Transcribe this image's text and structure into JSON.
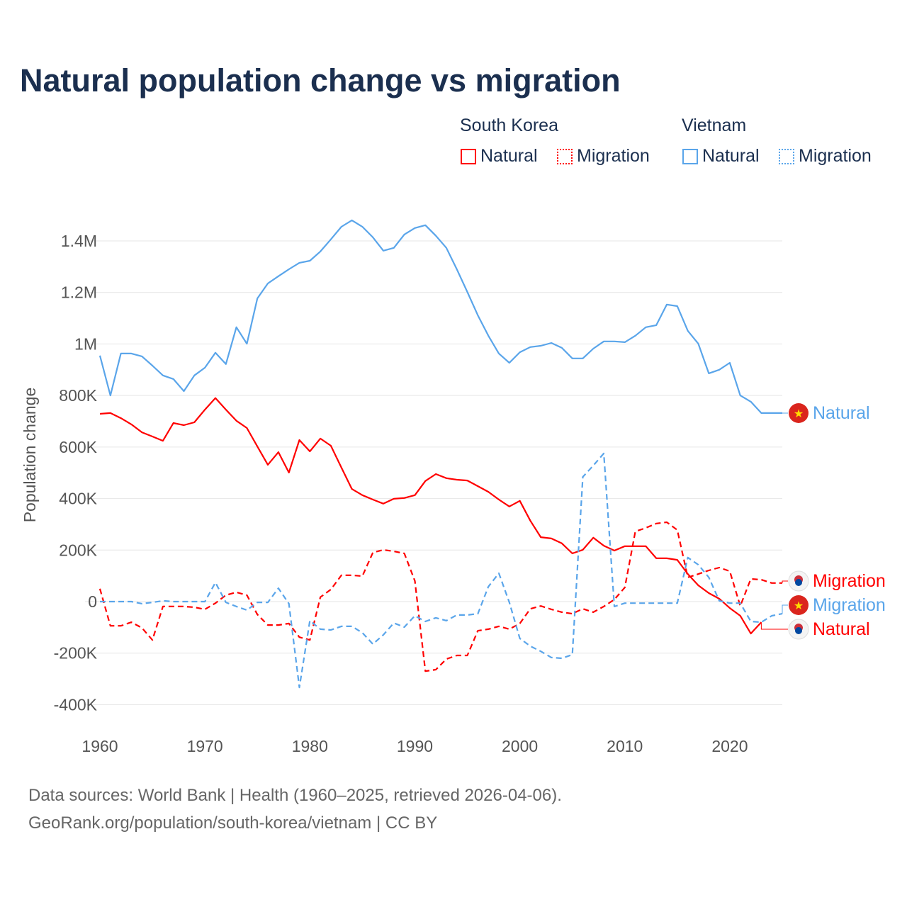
{
  "title": "Natural population change vs migration",
  "legend": {
    "groups": [
      {
        "name": "South Korea",
        "items": [
          "Natural",
          "Migration"
        ]
      },
      {
        "name": "Vietnam",
        "items": [
          "Natural",
          "Migration"
        ]
      }
    ]
  },
  "colors": {
    "south_korea": "#ff0000",
    "vietnam": "#5aa5ea",
    "title": "#1b2f4f"
  },
  "footer": {
    "line1": "Data sources: World Bank | Health (1960–2025, retrieved 2026-04-06).",
    "line2": "GeoRank.org/population/south-korea/vietnam | CC BY"
  },
  "chart_data": {
    "type": "line",
    "title": "Natural population change vs migration",
    "xlabel": "",
    "ylabel": "Population change",
    "xlim": [
      1960,
      2025
    ],
    "ylim": [
      -400000,
      1400000
    ],
    "x_ticks": [
      1960,
      1970,
      1980,
      1990,
      2000,
      2010,
      2020
    ],
    "y_ticks": [
      -400000,
      -200000,
      0,
      200000,
      400000,
      600000,
      800000,
      1000000,
      1200000,
      1400000
    ],
    "y_tick_labels": [
      "-400K",
      "-200K",
      "0",
      "200K",
      "400K",
      "600K",
      "800K",
      "1M",
      "1.2M",
      "1.4M"
    ],
    "grid": true,
    "legend_position": "top-right",
    "start_year": 1960,
    "series": [
      {
        "name": "Vietnam Natural",
        "label": "Natural",
        "country": "Vietnam",
        "color": "#5aa5ea",
        "dash": false,
        "values": [
          955000,
          800000,
          963000,
          963000,
          952000,
          916000,
          878000,
          864000,
          817000,
          878000,
          908000,
          966000,
          922000,
          1065000,
          1001000,
          1177000,
          1235000,
          1263000,
          1290000,
          1315000,
          1323000,
          1359000,
          1406000,
          1455000,
          1480000,
          1455000,
          1414000,
          1362000,
          1373000,
          1425000,
          1450000,
          1461000,
          1420000,
          1373000,
          1290000,
          1202000,
          1111000,
          1032000,
          963000,
          927000,
          968000,
          988000,
          993000,
          1004000,
          985000,
          944000,
          944000,
          982000,
          1010000,
          1010000,
          1007000,
          1032000,
          1065000,
          1073000,
          1153000,
          1147000,
          1051000,
          1001000,
          886000,
          900000,
          927000,
          800000,
          776000,
          732000,
          732000,
          732000
        ]
      },
      {
        "name": "South Korea Natural",
        "label": "Natural",
        "country": "South Korea",
        "color": "#ff0000",
        "dash": false,
        "values": [
          729000,
          732000,
          712000,
          688000,
          657000,
          641000,
          624000,
          693000,
          685000,
          696000,
          745000,
          790000,
          745000,
          702000,
          674000,
          602000,
          531000,
          580000,
          501000,
          627000,
          583000,
          633000,
          605000,
          520000,
          437000,
          413000,
          396000,
          380000,
          399000,
          402000,
          413000,
          468000,
          495000,
          479000,
          473000,
          470000,
          448000,
          426000,
          396000,
          369000,
          391000,
          314000,
          250000,
          245000,
          226000,
          187000,
          201000,
          248000,
          217000,
          198000,
          215000,
          215000,
          215000,
          168000,
          168000,
          162000,
          107000,
          63000,
          33000,
          11000,
          -25000,
          -55000,
          -124000,
          -80000,
          null,
          null
        ]
      },
      {
        "name": "South Korea Migration",
        "label": "Migration",
        "country": "South Korea",
        "color": "#ff0000",
        "dash": true,
        "values": [
          50000,
          -94000,
          -94000,
          -80000,
          -102000,
          -149000,
          -19000,
          -19000,
          -19000,
          -22000,
          -30000,
          -6000,
          25000,
          36000,
          25000,
          -50000,
          -91000,
          -91000,
          -85000,
          -138000,
          -149000,
          17000,
          47000,
          102000,
          102000,
          99000,
          190000,
          201000,
          195000,
          187000,
          80000,
          -270000,
          -264000,
          -223000,
          -209000,
          -209000,
          -113000,
          -107000,
          -96000,
          -107000,
          -85000,
          -28000,
          -17000,
          -30000,
          -41000,
          -47000,
          -28000,
          -41000,
          -19000,
          8000,
          55000,
          272000,
          286000,
          303000,
          308000,
          278000,
          94000,
          107000,
          121000,
          132000,
          118000,
          -17000,
          88000,
          85000,
          72000,
          72000
        ]
      },
      {
        "name": "Vietnam Migration",
        "label": "Migration",
        "country": "Vietnam",
        "color": "#5aa5ea",
        "dash": true,
        "values": [
          0,
          0,
          0,
          0,
          -8000,
          -3000,
          3000,
          0,
          0,
          0,
          0,
          74000,
          -3000,
          -19000,
          -33000,
          -3000,
          -3000,
          52000,
          -8000,
          -333000,
          -74000,
          -107000,
          -110000,
          -96000,
          -96000,
          -121000,
          -165000,
          -129000,
          -83000,
          -99000,
          -55000,
          -77000,
          -63000,
          -74000,
          -52000,
          -52000,
          -47000,
          58000,
          110000,
          -3000,
          -143000,
          -173000,
          -193000,
          -217000,
          -220000,
          -206000,
          484000,
          528000,
          575000,
          -19000,
          -6000,
          -6000,
          -6000,
          -6000,
          -6000,
          -6000,
          171000,
          143000,
          94000,
          3000,
          -6000,
          -6000,
          -77000,
          -80000,
          -55000,
          -47000
        ]
      }
    ],
    "end_labels": [
      {
        "series": "Vietnam Natural",
        "text": "Natural",
        "flag": "vietnam-flag"
      },
      {
        "series": "South Korea Migration",
        "text": "Migration",
        "flag": "south-korea-flag"
      },
      {
        "series": "Vietnam Migration",
        "text": "Migration",
        "flag": "vietnam-flag"
      },
      {
        "series": "South Korea Natural",
        "text": "Natural",
        "flag": "south-korea-flag"
      }
    ]
  }
}
